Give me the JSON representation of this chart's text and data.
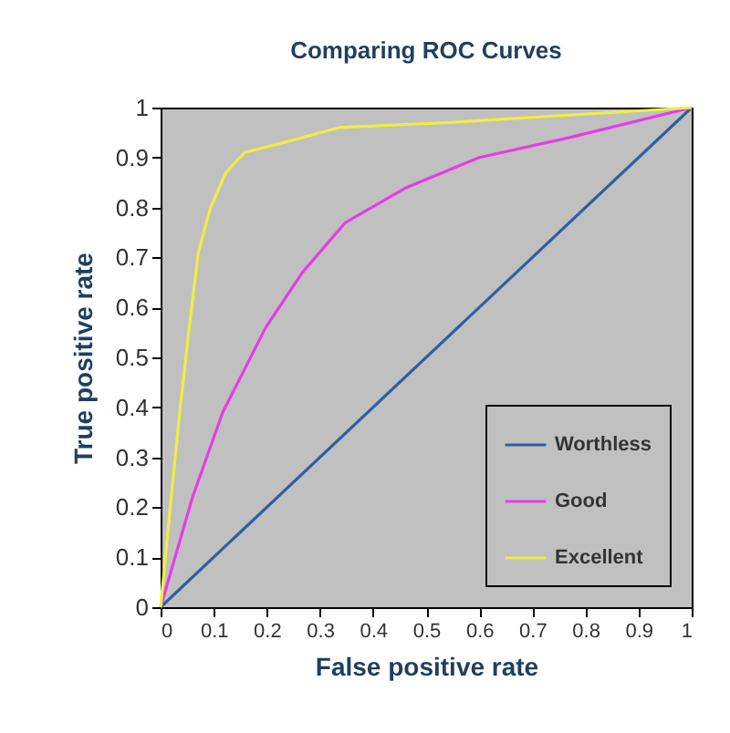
{
  "chart_data": {
    "type": "line",
    "title": "Comparing ROC Curves",
    "xlabel": "False positive rate",
    "ylabel": "True positive rate",
    "xlim": [
      0,
      1
    ],
    "ylim": [
      0,
      1
    ],
    "xticks": [
      0,
      0.1,
      0.2,
      0.3,
      0.4,
      0.5,
      0.6,
      0.7,
      0.8,
      0.9,
      1
    ],
    "yticks": [
      0,
      0.1,
      0.2,
      0.3,
      0.4,
      0.5,
      0.6,
      0.7,
      0.8,
      0.9,
      1
    ],
    "grid": false,
    "legend": "bottom right",
    "marker": "none",
    "line_style": "solid",
    "series": [
      {
        "name": "Worthless",
        "color": "#2f5f9f",
        "x": [
          0,
          1
        ],
        "values": [
          0,
          1
        ]
      },
      {
        "name": "Good",
        "color": "#e33de3",
        "x": [
          0,
          0.06,
          0.117,
          0.198,
          0.267,
          0.348,
          0.463,
          0.6,
          0.77,
          1
        ],
        "values": [
          0,
          0.22,
          0.39,
          0.56,
          0.67,
          0.77,
          0.84,
          0.9,
          0.94,
          1
        ]
      },
      {
        "name": "Excellent",
        "color": "#eeee44",
        "x": [
          0,
          0.02,
          0.037,
          0.054,
          0.071,
          0.094,
          0.123,
          0.158,
          0.232,
          0.336,
          0.543,
          0.773,
          1
        ],
        "values": [
          0,
          0.22,
          0.4,
          0.56,
          0.71,
          0.8,
          0.87,
          0.91,
          0.93,
          0.96,
          0.97,
          0.985,
          1
        ]
      }
    ]
  }
}
